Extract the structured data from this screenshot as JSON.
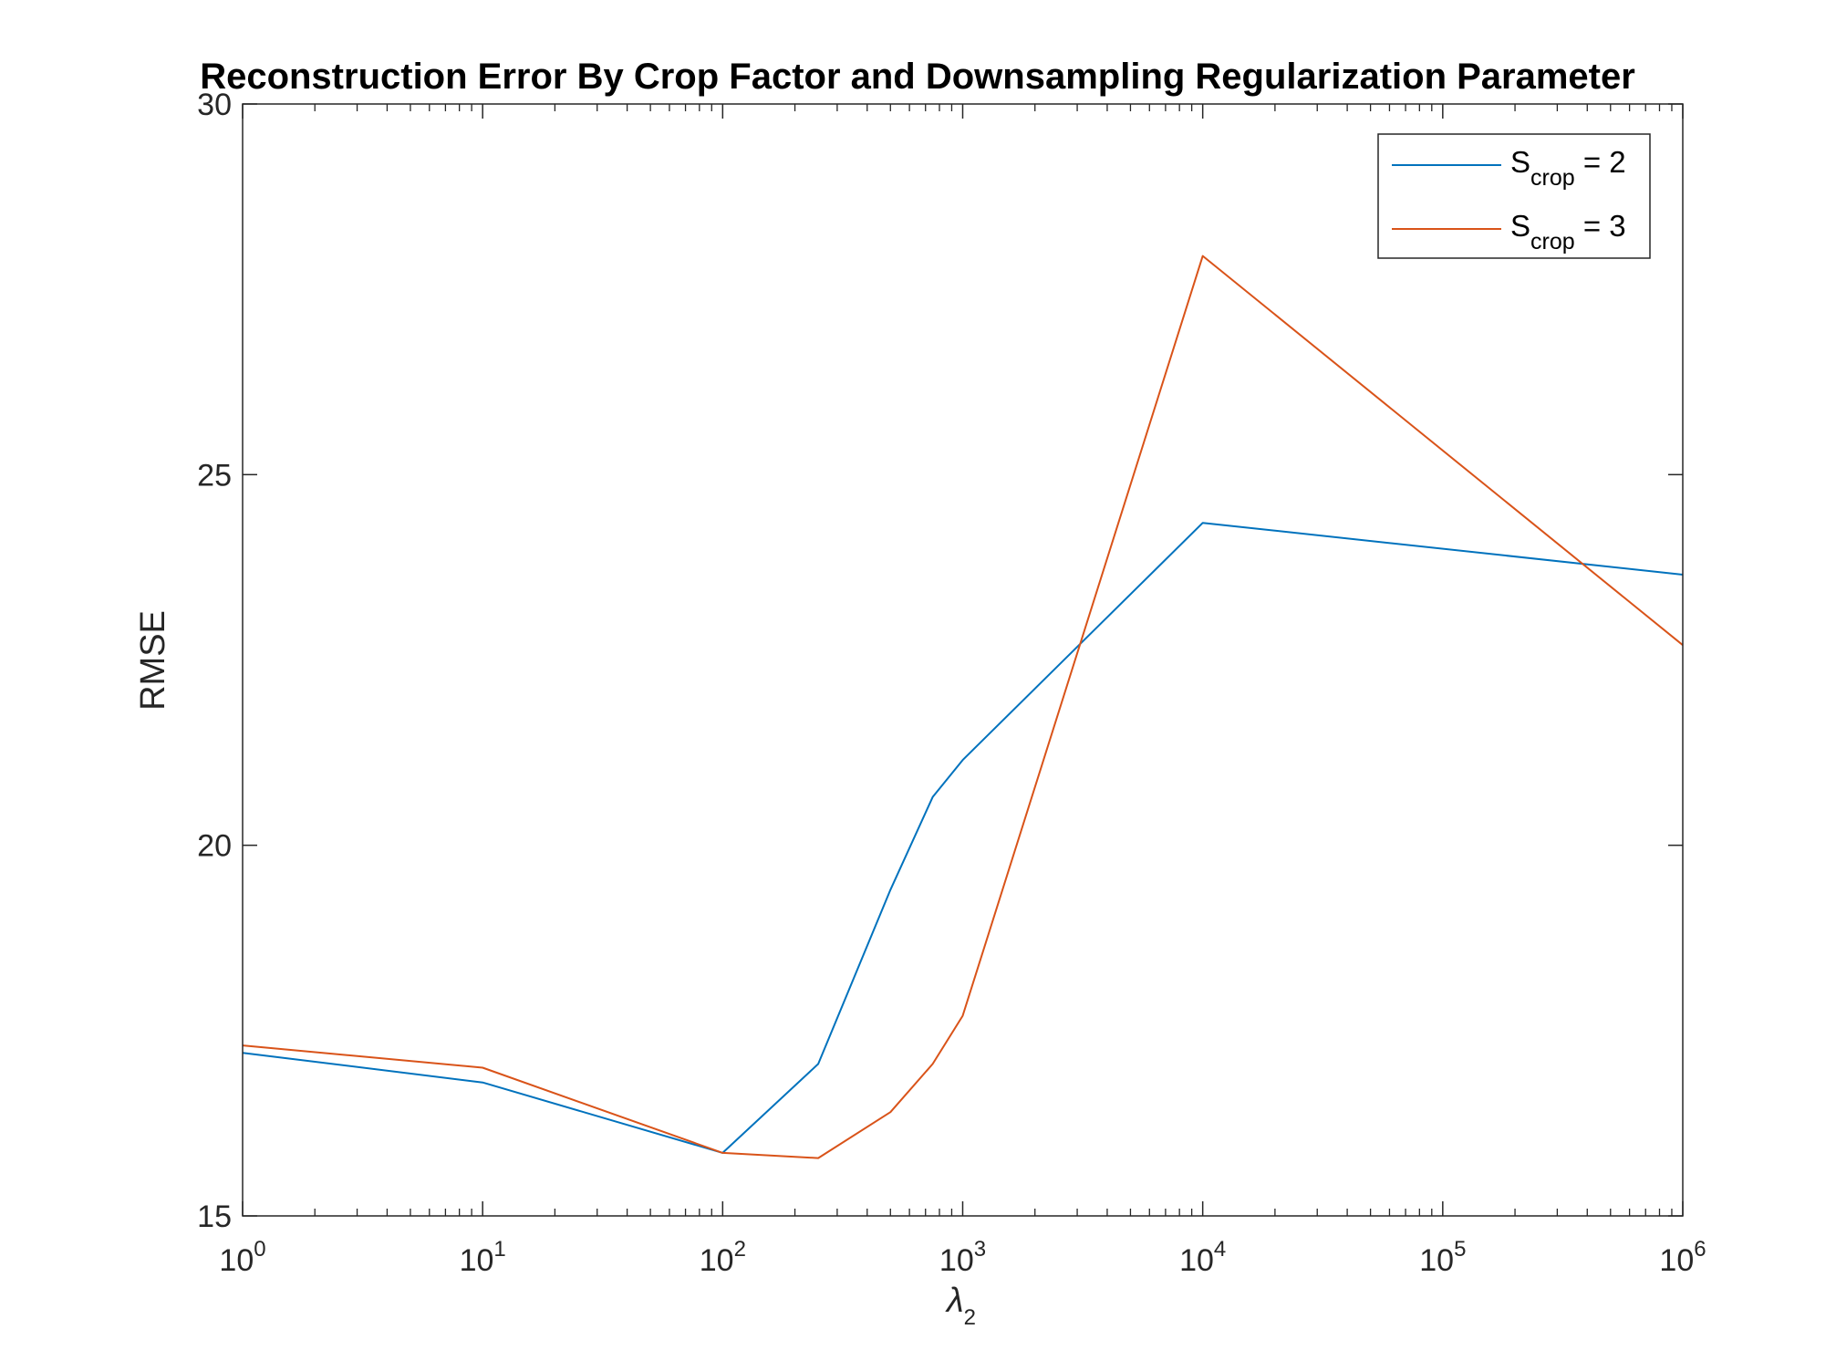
{
  "chart_data": {
    "type": "line",
    "title": "Reconstruction Error By Crop Factor and Downsampling Regularization Parameter",
    "xlabel": "λ",
    "xlabel_subscript": "2",
    "ylabel": "RMSE",
    "xscale": "log",
    "xlim": [
      1,
      1000000
    ],
    "ylim": [
      15,
      30
    ],
    "xticks": [
      {
        "value": 1,
        "base": "10",
        "exp": "0"
      },
      {
        "value": 10,
        "base": "10",
        "exp": "1"
      },
      {
        "value": 100,
        "base": "10",
        "exp": "2"
      },
      {
        "value": 1000,
        "base": "10",
        "exp": "3"
      },
      {
        "value": 10000,
        "base": "10",
        "exp": "4"
      },
      {
        "value": 100000,
        "base": "10",
        "exp": "5"
      },
      {
        "value": 1000000,
        "base": "10",
        "exp": "6"
      }
    ],
    "yticks": [
      {
        "value": 15,
        "label": "15"
      },
      {
        "value": 20,
        "label": "20"
      },
      {
        "value": 25,
        "label": "25"
      },
      {
        "value": 30,
        "label": "30"
      }
    ],
    "grid": false,
    "legend_position": "top-right",
    "series": [
      {
        "name_main": "S",
        "name_sub": "crop",
        "name_suffix": " = 2",
        "color": "#0072BD",
        "x": [
          1,
          10,
          100,
          250,
          500,
          750,
          1000,
          10000,
          1000000
        ],
        "y": [
          17.2,
          16.8,
          15.85,
          17.05,
          19.4,
          20.65,
          21.15,
          24.35,
          23.65
        ]
      },
      {
        "name_main": "S",
        "name_sub": "crop",
        "name_suffix": " = 3",
        "color": "#D95319",
        "x": [
          1,
          10,
          100,
          250,
          500,
          750,
          1000,
          10000,
          1000000
        ],
        "y": [
          17.3,
          17.0,
          15.85,
          15.78,
          16.4,
          17.05,
          17.7,
          27.95,
          22.7
        ]
      }
    ]
  }
}
